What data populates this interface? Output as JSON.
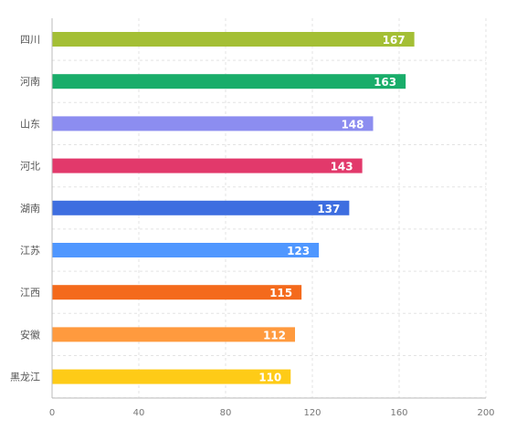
{
  "chart_data": {
    "type": "bar",
    "orientation": "horizontal",
    "categories": [
      "四川",
      "河南",
      "山东",
      "河北",
      "湖南",
      "江苏",
      "江西",
      "安徽",
      "黑龙江"
    ],
    "values": [
      167,
      163,
      148,
      143,
      137,
      123,
      115,
      112,
      110
    ],
    "colors": [
      "#a4bf35",
      "#19ad6a",
      "#8c8df0",
      "#e2396b",
      "#3e6ee0",
      "#4f97ff",
      "#f46a1c",
      "#ff9a3e",
      "#fecb17"
    ],
    "xlim": [
      0,
      200
    ],
    "xticks": [
      0,
      40,
      80,
      120,
      160,
      200
    ],
    "grid": true,
    "title": "",
    "xlabel": "",
    "ylabel": ""
  }
}
